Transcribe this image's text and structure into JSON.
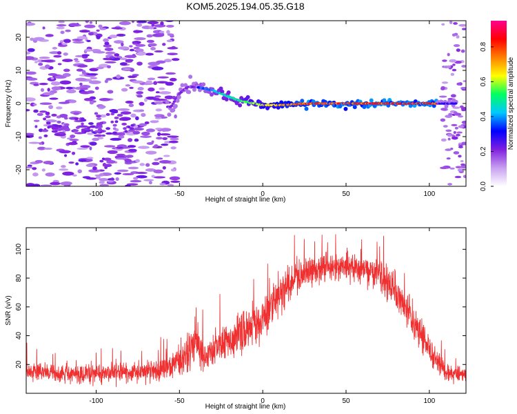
{
  "title": "KOM5.2025.194.05.35.G18",
  "chart_data": [
    {
      "type": "heatmap",
      "xlabel": "Height of straight line (km)",
      "ylabel": "Frequency (Hz)",
      "xlim": [
        -142,
        122
      ],
      "ylim": [
        -25,
        25
      ],
      "xticks": [
        -100,
        -50,
        0,
        50,
        100
      ],
      "yticks": [
        -20,
        -10,
        0,
        10,
        20
      ],
      "colorbar": {
        "label": "Normalized spectral amplitude",
        "range": [
          0,
          0.95
        ],
        "ticks": [
          "0.0",
          "0.2",
          "0.4",
          "0.6",
          "0.8"
        ],
        "colors": [
          "#ffffff",
          "#c8a0f0",
          "#8020e0",
          "#0000ff",
          "#00c8ff",
          "#00ff60",
          "#ffff00",
          "#ff8000",
          "#ff0000",
          "#ff0090"
        ]
      },
      "ridge": {
        "x": [
          -55,
          -50,
          -45,
          -40,
          -35,
          -30,
          -25,
          -20,
          -15,
          -10,
          -5,
          0,
          5,
          10,
          20,
          30,
          40,
          50,
          60,
          70,
          80,
          90,
          100,
          105,
          110,
          115
        ],
        "y": [
          -1,
          3,
          5,
          5,
          4.5,
          4,
          3,
          2,
          1,
          0.5,
          0,
          -0.5,
          -0.5,
          -0.5,
          -0.2,
          0,
          0,
          0,
          0,
          0,
          0,
          0,
          0,
          0,
          0,
          0
        ]
      }
    },
    {
      "type": "line",
      "xlabel": "Height of straight line (km)",
      "ylabel": "SNR (v/v)",
      "xlim": [
        -142,
        122
      ],
      "ylim": [
        0,
        115
      ],
      "xticks": [
        -100,
        -50,
        0,
        50,
        100
      ],
      "yticks": [
        20,
        40,
        60,
        80,
        100
      ],
      "color": "#f03030",
      "envelope": {
        "x": [
          -142,
          -120,
          -100,
          -80,
          -70,
          -60,
          -50,
          -45,
          -42,
          -40,
          -38,
          -35,
          -30,
          -20,
          -10,
          0,
          5,
          10,
          15,
          20,
          30,
          40,
          50,
          60,
          70,
          80,
          90,
          100,
          110,
          122
        ],
        "mean": [
          15,
          14,
          14,
          14,
          15,
          17,
          22,
          28,
          35,
          40,
          30,
          26,
          30,
          37,
          44,
          52,
          60,
          67,
          75,
          82,
          85,
          87,
          88,
          87,
          84,
          70,
          50,
          30,
          14,
          12
        ],
        "spread": [
          8,
          8,
          8,
          8,
          9,
          10,
          12,
          16,
          20,
          25,
          14,
          12,
          14,
          16,
          18,
          18,
          18,
          16,
          15,
          13,
          12,
          12,
          12,
          12,
          12,
          14,
          14,
          12,
          8,
          7
        ]
      }
    }
  ]
}
